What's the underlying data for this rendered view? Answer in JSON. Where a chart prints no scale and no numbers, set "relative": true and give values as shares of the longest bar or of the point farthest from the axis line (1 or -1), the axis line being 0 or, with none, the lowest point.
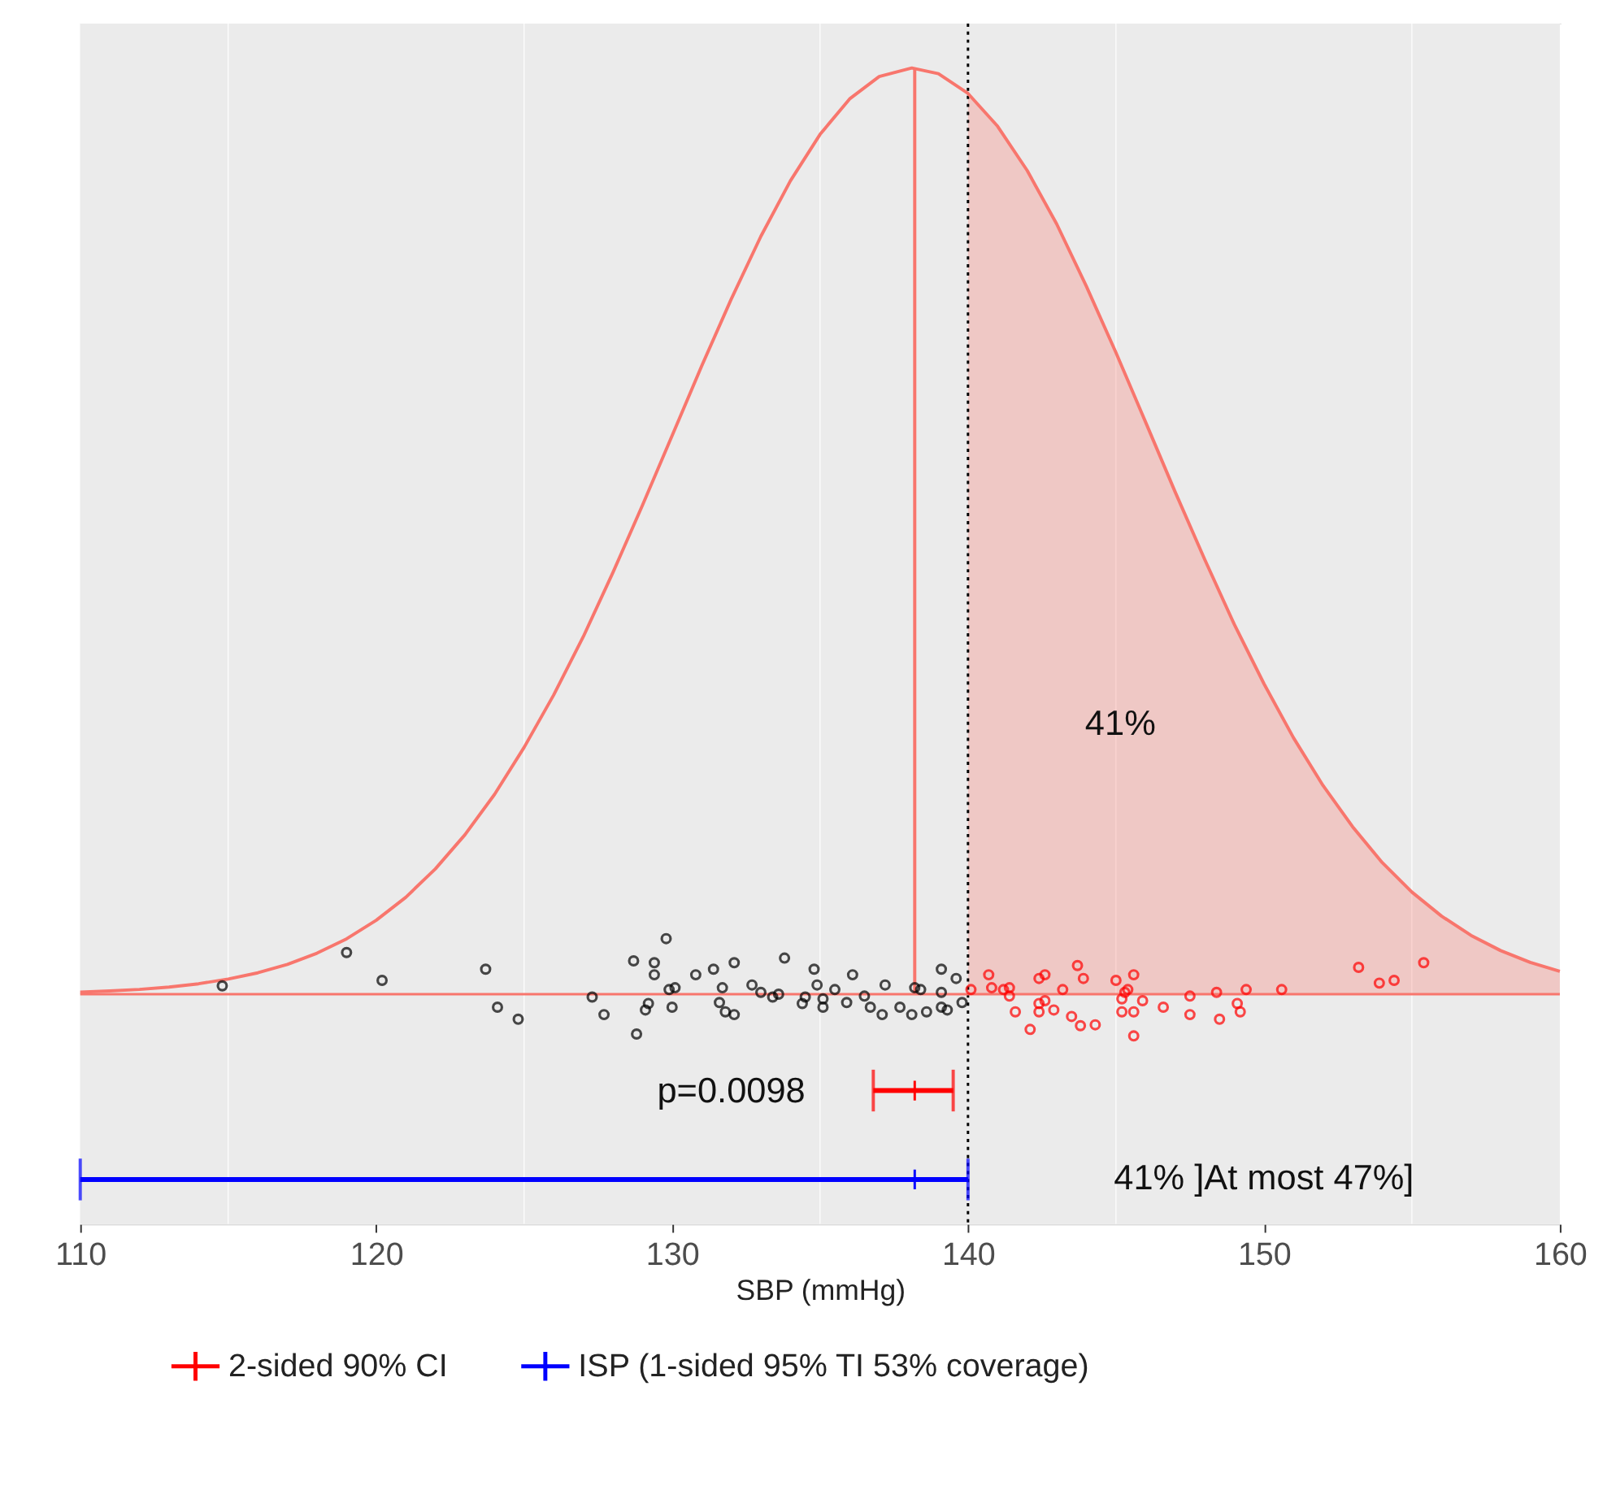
{
  "chart_data": {
    "type": "line",
    "relative": true,
    "xlabel": "SBP (mmHg)",
    "xlim": [
      110,
      160
    ],
    "xticks": [
      110,
      120,
      130,
      140,
      150,
      160
    ],
    "grid": "x",
    "legend": "bottom",
    "series": [
      {
        "color": "#f8766d",
        "x": [
          110,
          111,
          112,
          113,
          114,
          115,
          116,
          117,
          118,
          119,
          120,
          121,
          122,
          123,
          124,
          125,
          126,
          127,
          128,
          129,
          130,
          131,
          132,
          133,
          134,
          135,
          136,
          137,
          138.1,
          139,
          140,
          141,
          142,
          143,
          144,
          145,
          146,
          147,
          148,
          149,
          150,
          151,
          152,
          153,
          154,
          155,
          156,
          157,
          158,
          159,
          160
        ],
        "values": [
          0.0023,
          0.0035,
          0.0052,
          0.0077,
          0.0113,
          0.0164,
          0.0231,
          0.0322,
          0.0443,
          0.0598,
          0.0798,
          0.1046,
          0.1353,
          0.1722,
          0.2157,
          0.2665,
          0.3231,
          0.386,
          0.4552,
          0.5279,
          0.6029,
          0.6782,
          0.7505,
          0.8182,
          0.8782,
          0.9283,
          0.9666,
          0.9908,
          1,
          0.9938,
          0.9725,
          0.9371,
          0.8893,
          0.8314,
          0.7644,
          0.6927,
          0.6178,
          0.5423,
          0.4694,
          0.3992,
          0.3353,
          0.2768,
          0.2252,
          0.1807,
          0.1421,
          0.1103,
          0.0844,
          0.0635,
          0.0471,
          0.0344,
          0.0247
        ]
      },
      {
        "type": "area",
        "color": "#f8766d",
        "x": [
          140,
          141,
          142,
          143,
          144,
          145,
          146,
          147,
          148,
          149,
          150,
          151,
          152,
          153,
          154,
          155,
          156,
          157,
          158,
          159,
          160
        ],
        "values": [
          0.9725,
          0.9371,
          0.8893,
          0.8314,
          0.7644,
          0.6927,
          0.6178,
          0.5423,
          0.4694,
          0.3992,
          0.3353,
          0.2768,
          0.2252,
          0.1807,
          0.1421,
          0.1103,
          0.0844,
          0.0635,
          0.0471,
          0.0344,
          0.0247
        ]
      },
      {
        "type": "line",
        "color": "#f8766d",
        "x": [
          138.2,
          138.2
        ],
        "values": [
          0,
          1
        ]
      },
      {
        "type": "scatter",
        "marker": "circle",
        "color": "#000000",
        "x": [
          114.8,
          119.0,
          120.2,
          123.7,
          124.1,
          124.8,
          127.3,
          127.7,
          128.7,
          128.8,
          129.1,
          129.2,
          129.4,
          129.4,
          129.8,
          129.9,
          130.0,
          130.1,
          130.8,
          131.4,
          131.6,
          131.7,
          131.8,
          132.1,
          132.1,
          132.7,
          133.0,
          133.4,
          133.6,
          133.8,
          134.4,
          134.5,
          134.8,
          134.9,
          135.1,
          135.1,
          135.5,
          135.9,
          136.1,
          136.5,
          136.7,
          137.1,
          137.2,
          137.7,
          138.1,
          138.2,
          138.4,
          138.6,
          139.1,
          139.1,
          139.1,
          139.3,
          139.6,
          139.8
        ],
        "values": [
          0.009,
          0.045,
          0.015,
          0.027,
          -0.014,
          -0.027,
          -0.003,
          -0.022,
          0.036,
          -0.043,
          -0.017,
          -0.01,
          0.034,
          0.021,
          0.06,
          0.005,
          -0.014,
          0.007,
          0.021,
          0.027,
          -0.009,
          0.007,
          -0.019,
          0.034,
          -0.022,
          0.01,
          0.002,
          -0.003,
          0,
          0.039,
          -0.01,
          -0.003,
          0.027,
          0.01,
          -0.005,
          -0.014,
          0.005,
          -0.009,
          0.021,
          -0.002,
          -0.014,
          -0.022,
          0.01,
          -0.014,
          -0.022,
          0.007,
          0.005,
          -0.019,
          0.002,
          0.027,
          -0.014,
          -0.017,
          0.017,
          -0.009
        ]
      },
      {
        "type": "scatter",
        "marker": "circle",
        "color": "#ff0000",
        "x": [
          140.1,
          140.7,
          140.8,
          141.2,
          141.4,
          141.4,
          141.6,
          142.1,
          142.4,
          142.4,
          142.4,
          142.6,
          142.6,
          142.9,
          143.2,
          143.5,
          143.7,
          143.8,
          143.9,
          144.3,
          145.0,
          145.2,
          145.2,
          145.3,
          145.4,
          145.6,
          145.6,
          145.6,
          145.9,
          146.6,
          147.5,
          147.5,
          148.4,
          148.5,
          149.1,
          149.2,
          149.4,
          150.6,
          153.2,
          153.9,
          154.4,
          155.4
        ],
        "values": [
          0.005,
          0.021,
          0.007,
          0.005,
          0.007,
          -0.002,
          -0.019,
          -0.038,
          -0.01,
          -0.019,
          0.017,
          0.021,
          -0.007,
          -0.017,
          0.005,
          -0.024,
          0.031,
          -0.034,
          0.017,
          -0.033,
          0.015,
          -0.005,
          -0.019,
          0.002,
          0.005,
          0.021,
          -0.019,
          -0.045,
          -0.007,
          -0.014,
          -0.002,
          -0.022,
          0.002,
          -0.027,
          -0.01,
          -0.019,
          0.005,
          0.005,
          0.029,
          0.012,
          0.015,
          0.034
        ]
      },
      {
        "type": "scatter",
        "name": "2-sided 90% CI",
        "color": "#ff0000",
        "x": [
          138.2
        ],
        "values": [
          -0.104
        ],
        "marker": "cross",
        "xerrors": [
          [
            136.8,
            139.5
          ]
        ]
      },
      {
        "type": "scatter",
        "name": "ISP (1-sided 95% TI 53% coverage)",
        "color": "#0000ff",
        "x": [
          138.2
        ],
        "values": [
          -0.2
        ],
        "marker": "cross",
        "xerrors": [
          [
            110,
            140
          ]
        ]
      }
    ],
    "ref_lines": [
      {
        "axis": "x",
        "value": 140,
        "color": "#000000",
        "line_style": "dotted"
      },
      {
        "axis": "y",
        "value": 0,
        "color": "#f8766d"
      }
    ],
    "annotations": [
      "41%",
      "p=0.0098",
      "41% ]At most 47%]"
    ]
  }
}
